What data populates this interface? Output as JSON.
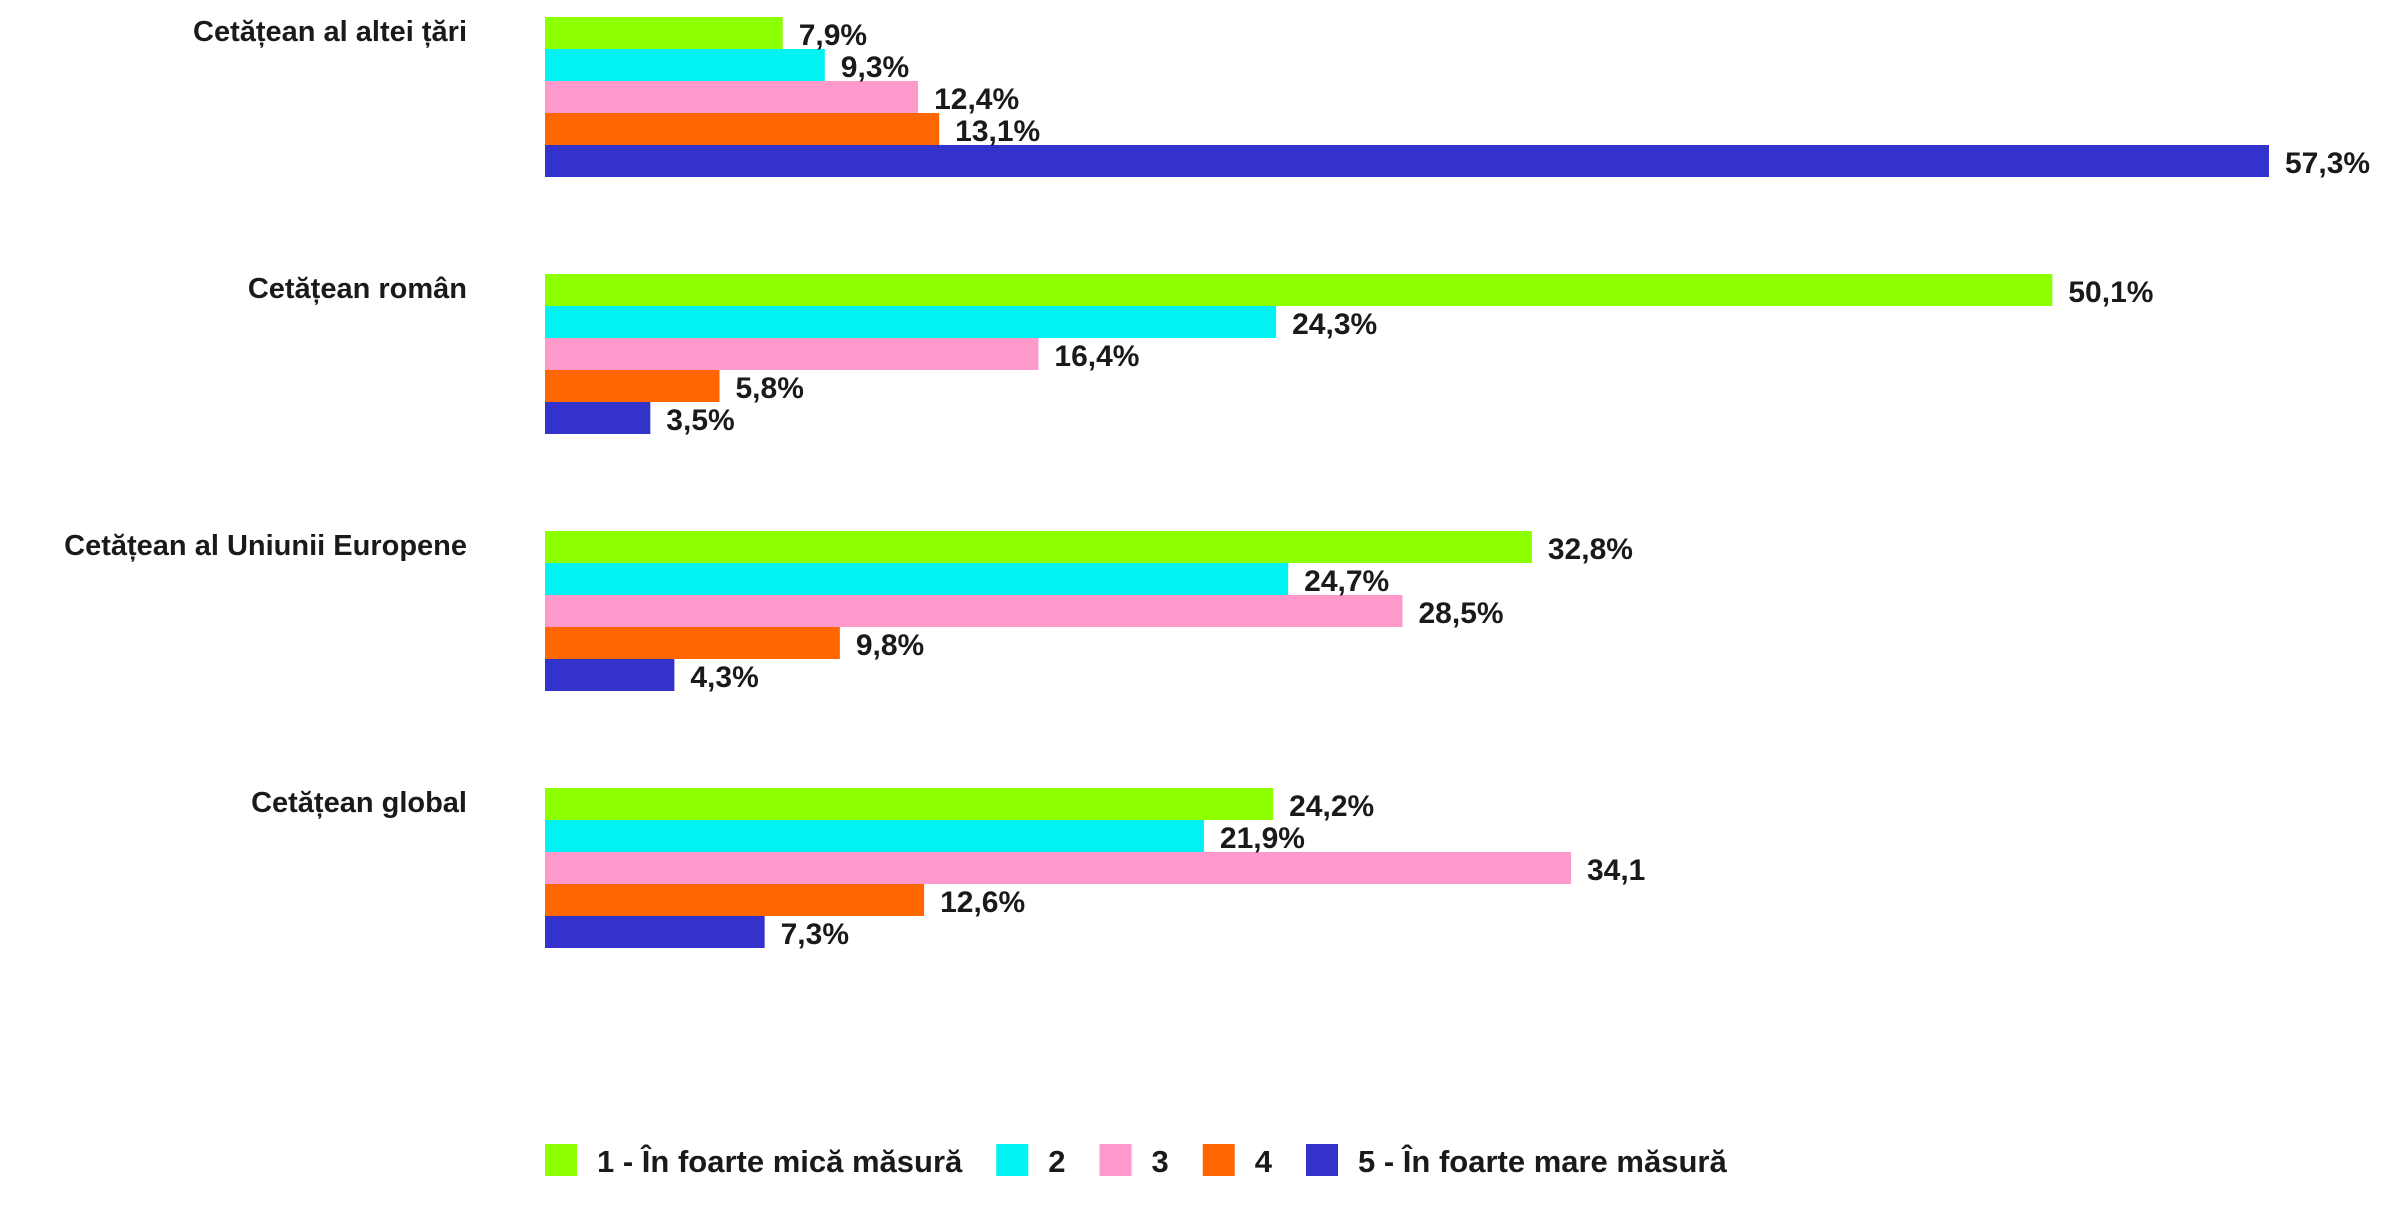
{
  "chart_data": {
    "type": "bar",
    "orientation": "horizontal",
    "categories": [
      "Cetățean al altei țări",
      "Cetățean român",
      "Cetățean al Uniunii Europene",
      "Cetățean global"
    ],
    "series": [
      {
        "name": "1 - În foarte mică măsură",
        "color": "#8cff00",
        "values": [
          7.9,
          50.1,
          32.8,
          24.2
        ],
        "labels": [
          "7,9%",
          "50,1%",
          "32,8%",
          "24,2%"
        ]
      },
      {
        "name": "2",
        "color": "#00f2f2",
        "values": [
          9.3,
          24.3,
          24.7,
          21.9
        ],
        "labels": [
          "9,3%",
          "24,3%",
          "24,7%",
          "21,9%"
        ]
      },
      {
        "name": "3",
        "color": "#ff99cc",
        "values": [
          12.4,
          16.4,
          28.5,
          34.1
        ],
        "labels": [
          "12,4%",
          "16,4%",
          "28,5%",
          "34,1"
        ]
      },
      {
        "name": "4",
        "color": "#ff6600",
        "values": [
          13.1,
          5.8,
          9.8,
          12.6
        ],
        "labels": [
          "13,1%",
          "5,8%",
          "9,8%",
          "12,6%"
        ]
      },
      {
        "name": "5 - În foarte mare măsură",
        "color": "#3333cc",
        "values": [
          57.3,
          3.5,
          4.3,
          7.3
        ],
        "labels": [
          "57,3%",
          "3,5%",
          "4,3%",
          "7,3%"
        ]
      }
    ],
    "xlim": [
      0,
      57.3
    ],
    "grid": false,
    "legend_position": "bottom"
  }
}
